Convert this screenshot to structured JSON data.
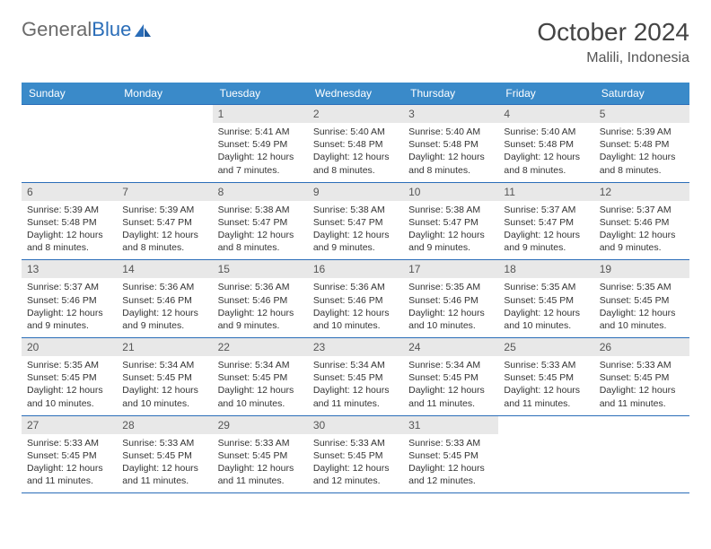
{
  "logo": {
    "text1": "General",
    "text2": "Blue"
  },
  "title": "October 2024",
  "location": "Malili, Indonesia",
  "colors": {
    "header_bg": "#3a8ac9",
    "header_text": "#ffffff",
    "border": "#2a6db8",
    "daynum_bg": "#e8e8e8",
    "logo_gray": "#6b6b6b",
    "logo_blue": "#2a6db8"
  },
  "weekdays": [
    "Sunday",
    "Monday",
    "Tuesday",
    "Wednesday",
    "Thursday",
    "Friday",
    "Saturday"
  ],
  "weeks": [
    [
      {
        "n": "",
        "sr": "",
        "ss": "",
        "dl": ""
      },
      {
        "n": "",
        "sr": "",
        "ss": "",
        "dl": ""
      },
      {
        "n": "1",
        "sr": "Sunrise: 5:41 AM",
        "ss": "Sunset: 5:49 PM",
        "dl": "Daylight: 12 hours and 7 minutes."
      },
      {
        "n": "2",
        "sr": "Sunrise: 5:40 AM",
        "ss": "Sunset: 5:48 PM",
        "dl": "Daylight: 12 hours and 8 minutes."
      },
      {
        "n": "3",
        "sr": "Sunrise: 5:40 AM",
        "ss": "Sunset: 5:48 PM",
        "dl": "Daylight: 12 hours and 8 minutes."
      },
      {
        "n": "4",
        "sr": "Sunrise: 5:40 AM",
        "ss": "Sunset: 5:48 PM",
        "dl": "Daylight: 12 hours and 8 minutes."
      },
      {
        "n": "5",
        "sr": "Sunrise: 5:39 AM",
        "ss": "Sunset: 5:48 PM",
        "dl": "Daylight: 12 hours and 8 minutes."
      }
    ],
    [
      {
        "n": "6",
        "sr": "Sunrise: 5:39 AM",
        "ss": "Sunset: 5:48 PM",
        "dl": "Daylight: 12 hours and 8 minutes."
      },
      {
        "n": "7",
        "sr": "Sunrise: 5:39 AM",
        "ss": "Sunset: 5:47 PM",
        "dl": "Daylight: 12 hours and 8 minutes."
      },
      {
        "n": "8",
        "sr": "Sunrise: 5:38 AM",
        "ss": "Sunset: 5:47 PM",
        "dl": "Daylight: 12 hours and 8 minutes."
      },
      {
        "n": "9",
        "sr": "Sunrise: 5:38 AM",
        "ss": "Sunset: 5:47 PM",
        "dl": "Daylight: 12 hours and 9 minutes."
      },
      {
        "n": "10",
        "sr": "Sunrise: 5:38 AM",
        "ss": "Sunset: 5:47 PM",
        "dl": "Daylight: 12 hours and 9 minutes."
      },
      {
        "n": "11",
        "sr": "Sunrise: 5:37 AM",
        "ss": "Sunset: 5:47 PM",
        "dl": "Daylight: 12 hours and 9 minutes."
      },
      {
        "n": "12",
        "sr": "Sunrise: 5:37 AM",
        "ss": "Sunset: 5:46 PM",
        "dl": "Daylight: 12 hours and 9 minutes."
      }
    ],
    [
      {
        "n": "13",
        "sr": "Sunrise: 5:37 AM",
        "ss": "Sunset: 5:46 PM",
        "dl": "Daylight: 12 hours and 9 minutes."
      },
      {
        "n": "14",
        "sr": "Sunrise: 5:36 AM",
        "ss": "Sunset: 5:46 PM",
        "dl": "Daylight: 12 hours and 9 minutes."
      },
      {
        "n": "15",
        "sr": "Sunrise: 5:36 AM",
        "ss": "Sunset: 5:46 PM",
        "dl": "Daylight: 12 hours and 9 minutes."
      },
      {
        "n": "16",
        "sr": "Sunrise: 5:36 AM",
        "ss": "Sunset: 5:46 PM",
        "dl": "Daylight: 12 hours and 10 minutes."
      },
      {
        "n": "17",
        "sr": "Sunrise: 5:35 AM",
        "ss": "Sunset: 5:46 PM",
        "dl": "Daylight: 12 hours and 10 minutes."
      },
      {
        "n": "18",
        "sr": "Sunrise: 5:35 AM",
        "ss": "Sunset: 5:45 PM",
        "dl": "Daylight: 12 hours and 10 minutes."
      },
      {
        "n": "19",
        "sr": "Sunrise: 5:35 AM",
        "ss": "Sunset: 5:45 PM",
        "dl": "Daylight: 12 hours and 10 minutes."
      }
    ],
    [
      {
        "n": "20",
        "sr": "Sunrise: 5:35 AM",
        "ss": "Sunset: 5:45 PM",
        "dl": "Daylight: 12 hours and 10 minutes."
      },
      {
        "n": "21",
        "sr": "Sunrise: 5:34 AM",
        "ss": "Sunset: 5:45 PM",
        "dl": "Daylight: 12 hours and 10 minutes."
      },
      {
        "n": "22",
        "sr": "Sunrise: 5:34 AM",
        "ss": "Sunset: 5:45 PM",
        "dl": "Daylight: 12 hours and 10 minutes."
      },
      {
        "n": "23",
        "sr": "Sunrise: 5:34 AM",
        "ss": "Sunset: 5:45 PM",
        "dl": "Daylight: 12 hours and 11 minutes."
      },
      {
        "n": "24",
        "sr": "Sunrise: 5:34 AM",
        "ss": "Sunset: 5:45 PM",
        "dl": "Daylight: 12 hours and 11 minutes."
      },
      {
        "n": "25",
        "sr": "Sunrise: 5:33 AM",
        "ss": "Sunset: 5:45 PM",
        "dl": "Daylight: 12 hours and 11 minutes."
      },
      {
        "n": "26",
        "sr": "Sunrise: 5:33 AM",
        "ss": "Sunset: 5:45 PM",
        "dl": "Daylight: 12 hours and 11 minutes."
      }
    ],
    [
      {
        "n": "27",
        "sr": "Sunrise: 5:33 AM",
        "ss": "Sunset: 5:45 PM",
        "dl": "Daylight: 12 hours and 11 minutes."
      },
      {
        "n": "28",
        "sr": "Sunrise: 5:33 AM",
        "ss": "Sunset: 5:45 PM",
        "dl": "Daylight: 12 hours and 11 minutes."
      },
      {
        "n": "29",
        "sr": "Sunrise: 5:33 AM",
        "ss": "Sunset: 5:45 PM",
        "dl": "Daylight: 12 hours and 11 minutes."
      },
      {
        "n": "30",
        "sr": "Sunrise: 5:33 AM",
        "ss": "Sunset: 5:45 PM",
        "dl": "Daylight: 12 hours and 12 minutes."
      },
      {
        "n": "31",
        "sr": "Sunrise: 5:33 AM",
        "ss": "Sunset: 5:45 PM",
        "dl": "Daylight: 12 hours and 12 minutes."
      },
      {
        "n": "",
        "sr": "",
        "ss": "",
        "dl": ""
      },
      {
        "n": "",
        "sr": "",
        "ss": "",
        "dl": ""
      }
    ]
  ]
}
